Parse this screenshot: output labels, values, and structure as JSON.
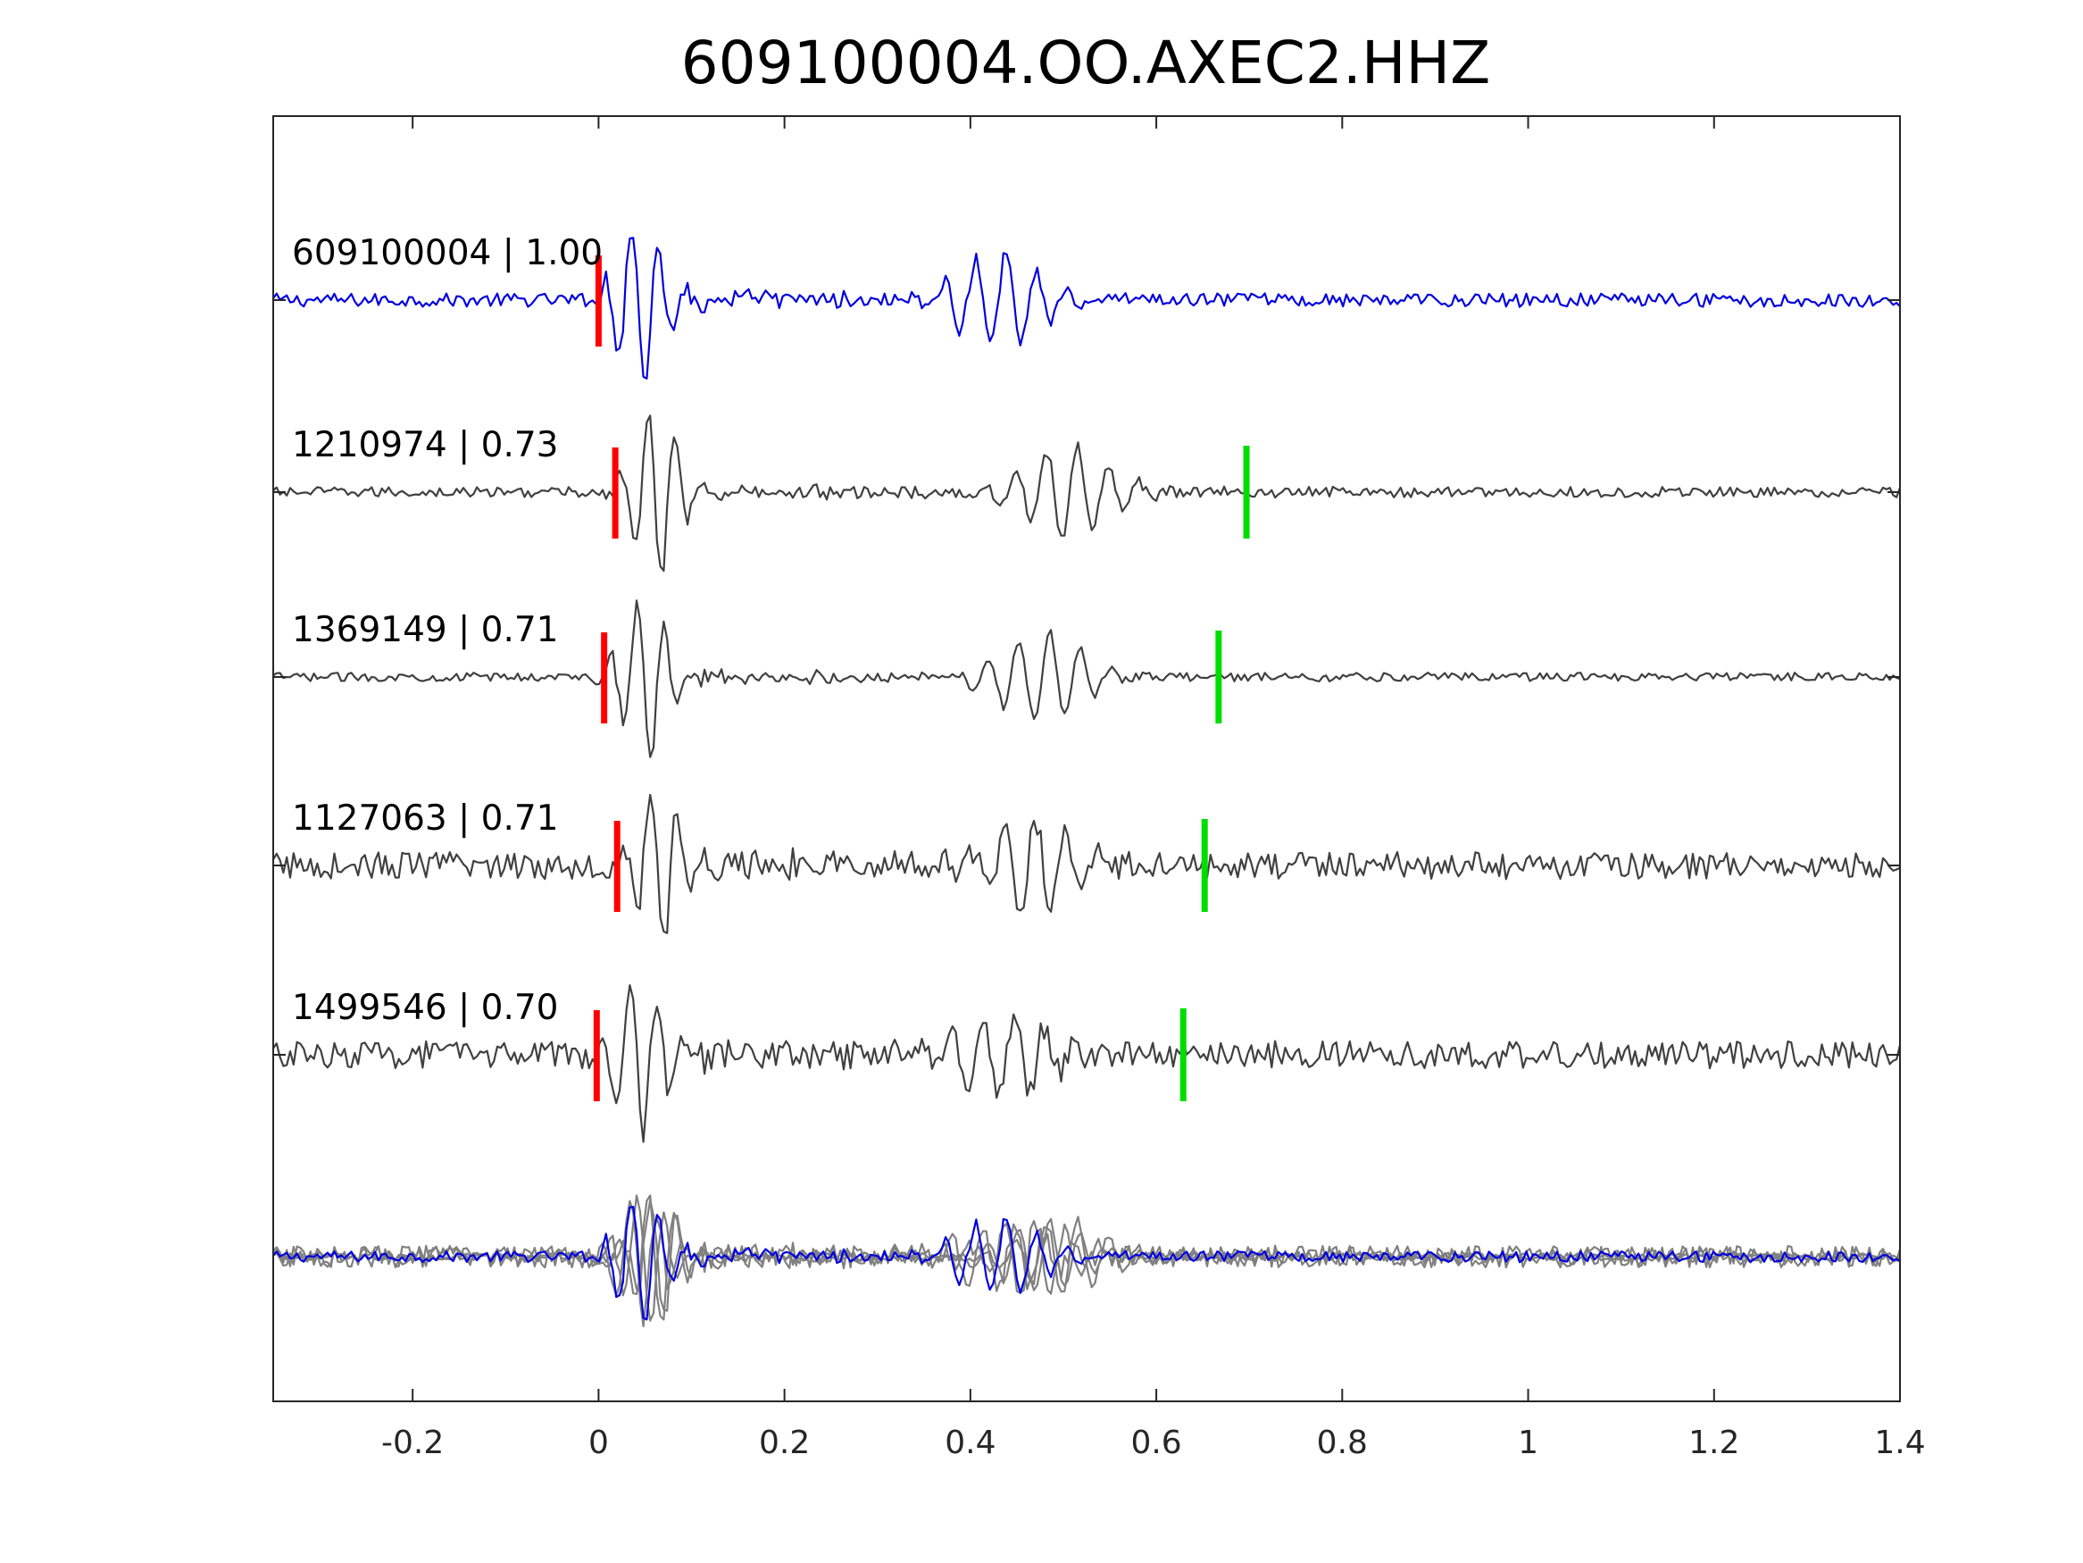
{
  "chart_data": {
    "type": "line",
    "title": "609100004.OO.AXEC2.HHZ",
    "xlabel": "",
    "ylabel": "",
    "xlim": [
      -0.35,
      1.4
    ],
    "xticks": [
      -0.2,
      0,
      0.2,
      0.4,
      0.6,
      0.8,
      1,
      1.2,
      1.4
    ],
    "xtick_labels": [
      "-0.2",
      "0",
      "0.2",
      "0.4",
      "0.6",
      "0.8",
      "1",
      "1.2",
      "1.4"
    ],
    "grid": false,
    "colors": {
      "master": "#0000e0",
      "neighbor": "#404040",
      "overlay": "#808080",
      "p_pick": "#ff0000",
      "s_pick": "#00dd00"
    },
    "traces": [
      {
        "label": "609100004 | 1.00",
        "event_id": "609100004",
        "correlation": 1.0,
        "p_pick": 0.0,
        "s_pick": null,
        "master": true
      },
      {
        "label": "1210974 | 0.73",
        "event_id": "1210974",
        "correlation": 0.73,
        "p_pick": 0.018,
        "s_pick": 0.697,
        "master": false
      },
      {
        "label": "1369149 | 0.71",
        "event_id": "1369149",
        "correlation": 0.71,
        "p_pick": 0.006,
        "s_pick": 0.667,
        "master": false
      },
      {
        "label": "1127063 | 0.71",
        "event_id": "1127063",
        "correlation": 0.71,
        "p_pick": 0.02,
        "s_pick": 0.652,
        "master": false
      },
      {
        "label": "1499546 | 0.70",
        "event_id": "1499546",
        "correlation": 0.7,
        "p_pick": -0.002,
        "s_pick": 0.629,
        "master": false
      }
    ]
  }
}
